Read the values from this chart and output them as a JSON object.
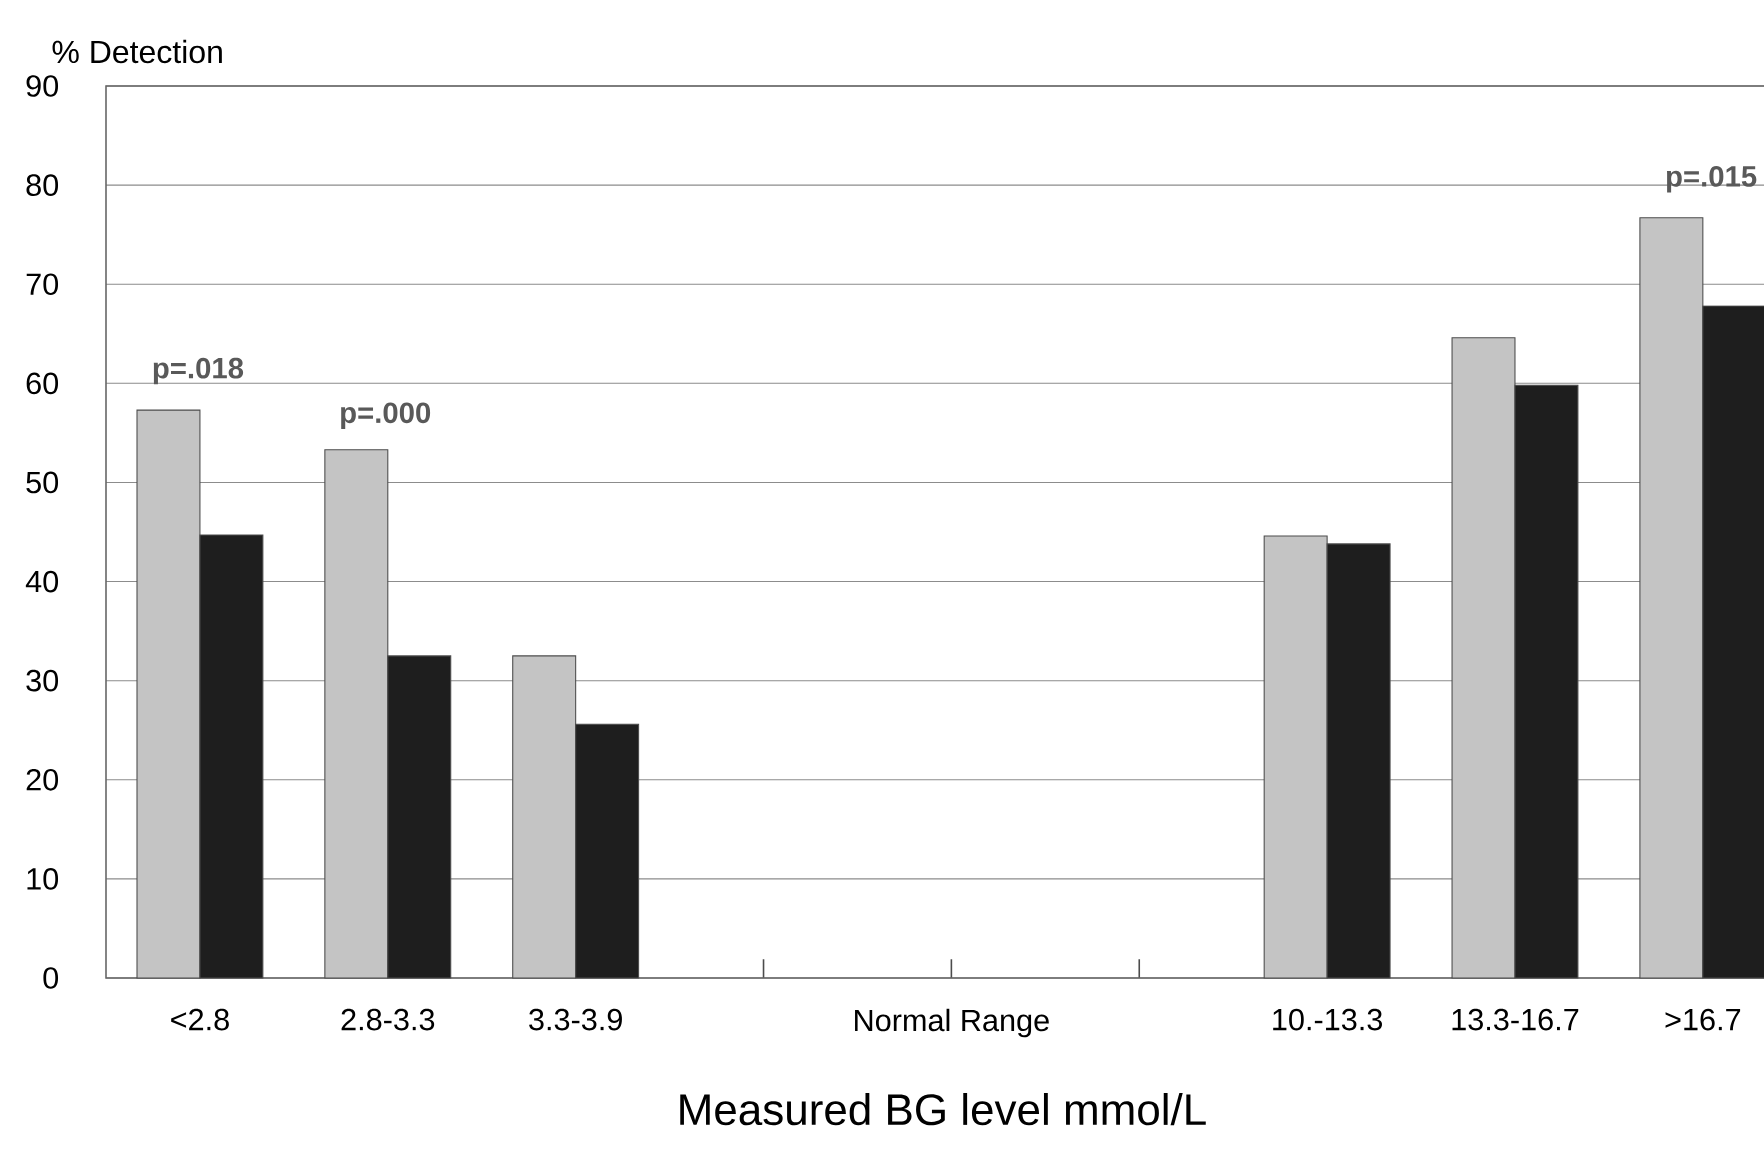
{
  "chart_data": {
    "type": "bar",
    "xlabel": "Measured BG level mmol/L",
    "ylabel": "% Detection",
    "categories": [
      "<2.8",
      "2.8-3.3",
      "3.3-3.9",
      null,
      "Normal Range",
      null,
      "10.-13.3",
      "13.3-16.7",
      ">16.7"
    ],
    "series": [
      {
        "color": "#c4c4c4",
        "values": [
          57.3,
          53.3,
          32.5,
          null,
          null,
          null,
          44.6,
          64.6,
          76.7
        ]
      },
      {
        "color": "#1e1e1e",
        "values": [
          44.7,
          32.5,
          25.6,
          null,
          null,
          null,
          43.8,
          59.8,
          67.8
        ]
      }
    ],
    "ylim": [
      0,
      90
    ],
    "yticks": [
      0,
      10,
      20,
      30,
      40,
      50,
      60,
      70,
      80,
      90
    ],
    "grid": "y",
    "annotations": [
      "p=.018",
      "p=.000",
      "p=.015"
    ]
  }
}
